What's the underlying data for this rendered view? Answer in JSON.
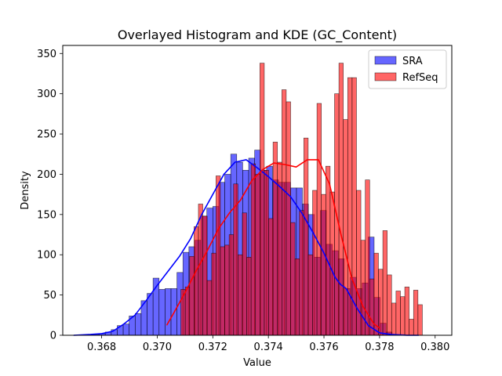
{
  "chart_data": {
    "type": "histogram",
    "title": "Overlayed Histogram and KDE (GC_Content)",
    "xlabel": "Value",
    "ylabel": "Density",
    "xlim": [
      0.3666,
      0.3806
    ],
    "ylim": [
      0,
      360
    ],
    "xticks": [
      0.368,
      0.37,
      0.372,
      0.374,
      0.376,
      0.378,
      0.38
    ],
    "xtick_labels": [
      "0.368",
      "0.370",
      "0.372",
      "0.374",
      "0.376",
      "0.378",
      "0.380"
    ],
    "yticks": [
      0,
      50,
      100,
      150,
      200,
      250,
      300,
      350
    ],
    "ytick_labels": [
      "0",
      "50",
      "100",
      "150",
      "200",
      "250",
      "300",
      "350"
    ],
    "legend_position": "top-right",
    "grid": false,
    "series": [
      {
        "name": "SRA",
        "color": "#0000ff",
        "bin_start": 0.3677,
        "bin_width": 0.000215,
        "values": [
          1,
          2,
          4,
          7,
          12,
          14,
          24,
          27,
          43,
          52,
          71,
          57,
          58,
          58,
          78,
          103,
          110,
          118,
          148,
          158,
          160,
          190,
          200,
          225,
          215,
          205,
          220,
          230,
          205,
          210,
          193,
          190,
          190,
          183,
          183,
          163,
          150,
          97,
          155,
          113,
          105,
          95,
          58,
          72,
          58,
          65,
          122,
          47,
          15,
          4,
          1
        ]
      },
      {
        "name": "RefSeq",
        "color": "#ff0000",
        "bin_start": 0.37085,
        "bin_width": 0.000158,
        "values": [
          57,
          60,
          98,
          135,
          163,
          148,
          68,
          102,
          198,
          110,
          112,
          125,
          188,
          100,
          152,
          97,
          213,
          200,
          338,
          205,
          145,
          240,
          215,
          305,
          290,
          140,
          95,
          155,
          245,
          100,
          180,
          288,
          175,
          210,
          178,
          300,
          338,
          268,
          320,
          320,
          180,
          118,
          193,
          70,
          102,
          82,
          130,
          75,
          40,
          55,
          48,
          60,
          20,
          56,
          38
        ]
      }
    ],
    "kde": [
      {
        "name": "SRA",
        "color": "#0000ff",
        "x": [
          0.367,
          0.3676,
          0.368,
          0.3684,
          0.3688,
          0.3692,
          0.3696,
          0.37,
          0.3704,
          0.3708,
          0.3712,
          0.3716,
          0.372,
          0.3724,
          0.3728,
          0.3732,
          0.3736,
          0.374,
          0.3744,
          0.3748,
          0.3752,
          0.3756,
          0.376,
          0.3764,
          0.3766,
          0.3768,
          0.3772,
          0.3776,
          0.378,
          0.3784,
          0.379,
          0.3794
        ],
        "y": [
          0,
          1,
          2,
          5,
          14,
          25,
          43,
          62,
          80,
          98,
          120,
          150,
          175,
          200,
          215,
          218,
          208,
          197,
          185,
          172,
          152,
          128,
          102,
          72,
          63,
          58,
          33,
          12,
          3,
          1,
          0,
          0
        ]
      },
      {
        "name": "RefSeq",
        "color": "#ff0000",
        "x": [
          0.37035,
          0.3706,
          0.371,
          0.3714,
          0.3718,
          0.3722,
          0.3726,
          0.373,
          0.3734,
          0.3738,
          0.3742,
          0.3746,
          0.375,
          0.3754,
          0.3758,
          0.3762,
          0.3766,
          0.377,
          0.3774,
          0.3778,
          0.378
        ],
        "y": [
          13,
          28,
          53,
          80,
          105,
          132,
          152,
          168,
          192,
          206,
          214,
          212,
          209,
          218,
          218,
          188,
          127,
          71,
          36,
          14,
          9
        ]
      }
    ]
  }
}
